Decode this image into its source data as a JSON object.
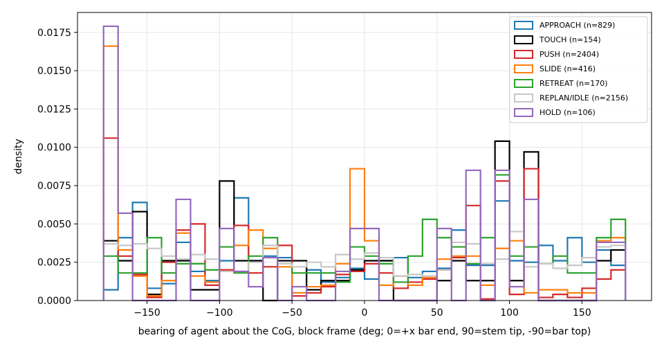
{
  "chart_data": {
    "type": "histogram-step",
    "xlabel": "bearing of agent about the CoG, block frame (deg; 0=+x bar end, 90=stem tip, -90=bar top)",
    "ylabel": "density",
    "xlim": [
      -198,
      198
    ],
    "ylim": [
      0,
      0.0188
    ],
    "x_ticks": [
      -150,
      -100,
      -50,
      0,
      50,
      100,
      150
    ],
    "x_tick_labels": [
      "−150",
      "−100",
      "−50",
      "0",
      "50",
      "100",
      "150"
    ],
    "y_ticks": [
      0,
      0.0025,
      0.005,
      0.0075,
      0.01,
      0.0125,
      0.015,
      0.0175
    ],
    "y_tick_labels": [
      "0.0000",
      "0.0025",
      "0.0050",
      "0.0075",
      "0.0100",
      "0.0125",
      "0.0150",
      "0.0175"
    ],
    "grid": true,
    "legend_position": "top-right",
    "bin_edges": [
      -180,
      -170,
      -160,
      -150,
      -140,
      -130,
      -120,
      -110,
      -100,
      -90,
      -80,
      -70,
      -60,
      -50,
      -40,
      -30,
      -20,
      -10,
      0,
      10,
      20,
      30,
      40,
      50,
      60,
      70,
      80,
      90,
      100,
      110,
      120,
      130,
      140,
      150,
      160,
      170,
      180
    ],
    "series": [
      {
        "name": "APPROACH (n=829)",
        "color": "#1f77b4",
        "values": [
          0.0007,
          0.0041,
          0.0064,
          0.0008,
          0.0011,
          0.0038,
          0.0019,
          0.0013,
          0.0026,
          0.0067,
          0.0026,
          0.0029,
          0.0028,
          0.0005,
          0.002,
          0.0012,
          0.0015,
          0.0021,
          0.0014,
          0.0026,
          0.0028,
          0.0015,
          0.0019,
          0.0021,
          0.0046,
          0.0023,
          0.0023,
          0.0065,
          0.0026,
          0.0025,
          0.0036,
          0.0026,
          0.0041,
          0.0025,
          0.0033,
          0.0023
        ]
      },
      {
        "name": "TOUCH (n=154)",
        "color": "#000000",
        "values": [
          0.0039,
          0.0026,
          0.0058,
          0.0004,
          0.0026,
          0.0026,
          0.0007,
          0.0007,
          0.0078,
          0.0026,
          0.0026,
          0.0,
          0.0026,
          0.0026,
          0.0007,
          0.0013,
          0.0013,
          0.002,
          0.0026,
          0.0026,
          0.0,
          0.0,
          0.0,
          0.0013,
          0.0026,
          0.0013,
          0.0013,
          0.0104,
          0.0013,
          0.0097,
          0.0,
          0.0,
          0.0,
          0.0,
          0.0026,
          0.0033
        ]
      },
      {
        "name": "PUSH (n=2404)",
        "color": "#d62728",
        "values": [
          0.0106,
          0.0029,
          0.0017,
          0.0002,
          0.0025,
          0.0046,
          0.005,
          0.001,
          0.002,
          0.0049,
          0.0018,
          0.0022,
          0.0036,
          0.0003,
          0.0005,
          0.0009,
          0.0017,
          0.0019,
          0.0024,
          0.0018,
          0.0008,
          0.0012,
          0.0014,
          0.002,
          0.0028,
          0.0062,
          0.0001,
          0.0078,
          0.0004,
          0.0086,
          0.0002,
          0.0004,
          0.0002,
          0.0008,
          0.0014,
          0.002
        ]
      },
      {
        "name": "SLIDE (n=416)",
        "color": "#ff7f0e",
        "values": [
          0.0166,
          0.0033,
          0.0016,
          0.0003,
          0.0013,
          0.0044,
          0.0016,
          0.0012,
          0.0019,
          0.0036,
          0.0046,
          0.0034,
          0.0022,
          0.0005,
          0.0009,
          0.001,
          0.0024,
          0.0086,
          0.0039,
          0.001,
          0.0016,
          0.001,
          0.0015,
          0.0027,
          0.0029,
          0.0029,
          0.001,
          0.0034,
          0.0039,
          0.0005,
          0.0007,
          0.0007,
          0.0005,
          0.0005,
          0.0039,
          0.0041
        ]
      },
      {
        "name": "RETREAT (n=170)",
        "color": "#2ca02c",
        "values": [
          0.0029,
          0.0018,
          0.0018,
          0.0041,
          0.0018,
          0.0024,
          0.0024,
          0.002,
          0.0035,
          0.0018,
          0.0029,
          0.0041,
          0.0024,
          0.0018,
          0.0018,
          0.0018,
          0.0012,
          0.0035,
          0.0029,
          0.0024,
          0.0012,
          0.0029,
          0.0053,
          0.0041,
          0.0035,
          0.0024,
          0.0041,
          0.0082,
          0.0029,
          0.0035,
          0.0024,
          0.0029,
          0.0018,
          0.0018,
          0.0041,
          0.0053
        ]
      },
      {
        "name": "REPLAN/IDLE (n=2156)",
        "color": "#c7c7c7",
        "values": [
          0.0037,
          0.0036,
          0.0037,
          0.0034,
          0.0029,
          0.0027,
          0.003,
          0.0027,
          0.0019,
          0.0019,
          0.0025,
          0.0036,
          0.0024,
          0.0022,
          0.0025,
          0.0022,
          0.003,
          0.0027,
          0.0031,
          0.0028,
          0.0016,
          0.0017,
          0.0016,
          0.002,
          0.0038,
          0.0037,
          0.0024,
          0.0027,
          0.0045,
          0.0022,
          0.0024,
          0.0021,
          0.0023,
          0.0028,
          0.0035,
          0.0036
        ]
      },
      {
        "name": "HOLD (n=106)",
        "color": "#9467bd",
        "values": [
          0.0179,
          0.0057,
          0.0,
          0.0,
          0.0,
          0.0066,
          0.0,
          0.0,
          0.0047,
          0.0019,
          0.0009,
          0.0028,
          0.0,
          0.0009,
          0.0,
          0.0,
          0.0019,
          0.0047,
          0.0047,
          0.0,
          0.0,
          0.0,
          0.0,
          0.0047,
          0.0,
          0.0085,
          0.0,
          0.0085,
          0.0009,
          0.0066,
          0.0,
          0.0,
          0.0,
          0.0,
          0.0038,
          0.0038
        ]
      }
    ]
  }
}
